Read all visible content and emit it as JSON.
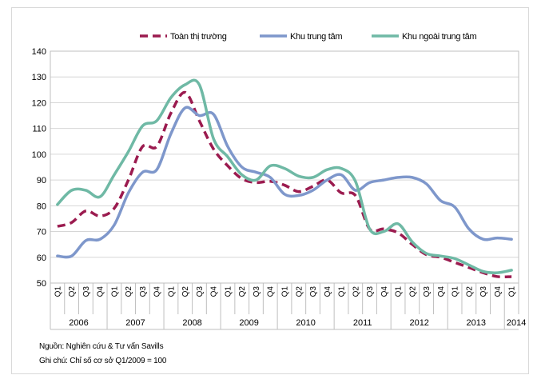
{
  "chart_data": {
    "type": "line",
    "title": "",
    "xlabel": "",
    "ylabel": "",
    "ylim": [
      50,
      140
    ],
    "yticks": [
      50,
      60,
      70,
      80,
      90,
      100,
      110,
      120,
      130,
      140
    ],
    "grid": true,
    "legend_position": "top",
    "x_quarters": [
      "Q1",
      "Q2",
      "Q3",
      "Q4",
      "Q1",
      "Q2",
      "Q3",
      "Q4",
      "Q1",
      "Q2",
      "Q3",
      "Q4",
      "Q1",
      "Q2",
      "Q3",
      "Q4",
      "Q1",
      "Q2",
      "Q3",
      "Q4",
      "Q1",
      "Q2",
      "Q3",
      "Q4",
      "Q1",
      "Q2",
      "Q3",
      "Q4",
      "Q1",
      "Q2",
      "Q3",
      "Q4",
      "Q1"
    ],
    "x_years": [
      "2006",
      "2007",
      "2008",
      "2009",
      "2010",
      "2011",
      "2012",
      "2013",
      "2014"
    ],
    "series": [
      {
        "name": "Toàn thị trường",
        "color": "#9b1b4f",
        "dash": true,
        "values": [
          72,
          73.5,
          78,
          76,
          79,
          90,
          103,
          103,
          116,
          124,
          113,
          102,
          95.5,
          90.5,
          89,
          89.5,
          88,
          85.5,
          87.5,
          90,
          85,
          84,
          71,
          71,
          69.5,
          65,
          61,
          60,
          58,
          56,
          54,
          52.5,
          52.5
        ]
      },
      {
        "name": "Khu trung tâm",
        "color": "#7e97cb",
        "dash": false,
        "values": [
          60.5,
          60.5,
          66.5,
          67,
          72.5,
          85,
          93,
          94,
          108,
          118,
          115,
          115.5,
          103,
          95,
          93,
          91,
          84.5,
          84,
          86,
          90,
          92,
          86,
          89,
          90,
          91,
          91,
          88.5,
          82,
          79.5,
          71,
          67,
          67.5,
          67
        ]
      },
      {
        "name": "Khu ngoài trung tâm",
        "color": "#6fb9a5",
        "dash": false,
        "values": [
          80.5,
          86,
          86,
          83.5,
          92,
          101,
          111,
          113,
          122,
          127,
          127,
          106,
          99,
          92,
          90,
          95.5,
          94.5,
          91.5,
          91,
          94,
          94.5,
          89.5,
          71,
          70,
          73,
          66,
          61.5,
          60.5,
          59.5,
          57,
          54.5,
          54,
          55
        ]
      }
    ]
  },
  "notes": {
    "source": "Nguồn: Nghiên cứu & Tư vấn Savills",
    "remark": "Ghi chú: Chỉ số cơ sở Q1/2009 = 100"
  }
}
